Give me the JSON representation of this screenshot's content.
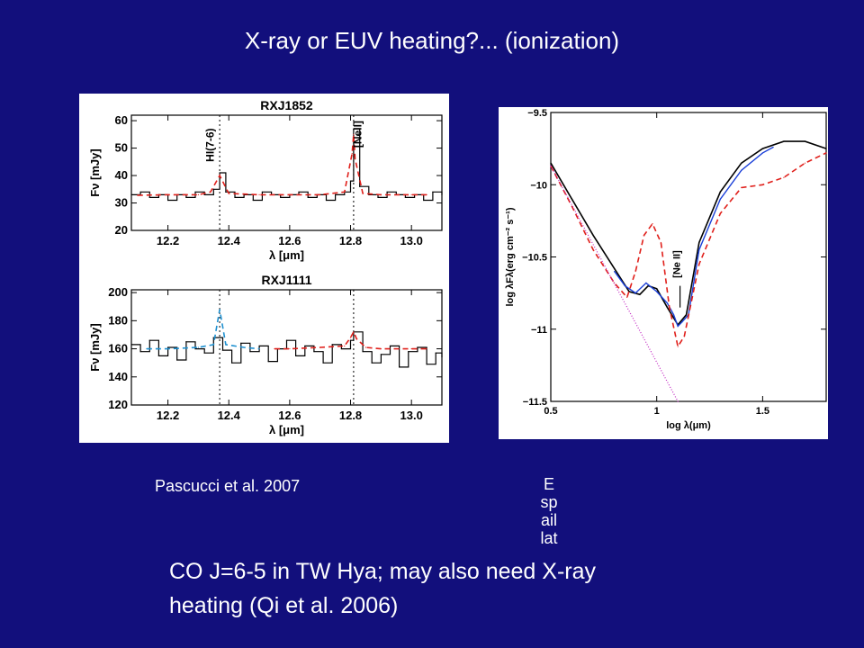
{
  "slide": {
    "title": "X-ray or EUV heating?... (ionization)",
    "caption_left": "Pascucci et al. 2007",
    "caption_right": "Espaillat",
    "bottom_line1": "CO J=6-5 in TW Hya; may also need X-ray",
    "bottom_line2": "heating (Qi et al. 2006)"
  },
  "colors": {
    "background": "#120f7c",
    "observed": "#000000",
    "model_red": "#e0201b",
    "model_blue": "#1e90d0",
    "spectrum_blue": "#1a3fd8",
    "dotted_magenta": "#c020c0"
  },
  "chart_data": [
    {
      "type": "line",
      "title": "RXJ1852",
      "ylabel": "Fν [mJy]",
      "xlabel": "λ [μm]",
      "xlim": [
        12.08,
        13.1
      ],
      "ylim": [
        20,
        62
      ],
      "xticks": [
        "12.2",
        "12.4",
        "12.6",
        "12.8",
        "13.0"
      ],
      "yticks": [
        "20",
        "30",
        "40",
        "50",
        "60"
      ],
      "annotations": [
        "HI(7-6)",
        "[NeII]"
      ],
      "line_markers_x": [
        12.37,
        12.81
      ],
      "series": [
        {
          "style": "step-black",
          "x": [
            12.08,
            12.11,
            12.14,
            12.17,
            12.2,
            12.23,
            12.26,
            12.29,
            12.32,
            12.35,
            12.37,
            12.39,
            12.42,
            12.45,
            12.48,
            12.51,
            12.54,
            12.57,
            12.6,
            12.63,
            12.66,
            12.69,
            12.72,
            12.75,
            12.78,
            12.8,
            12.81,
            12.83,
            12.86,
            12.89,
            12.92,
            12.95,
            12.98,
            13.01,
            13.04,
            13.07,
            13.1
          ],
          "y": [
            33,
            34,
            32,
            33,
            31,
            33,
            32,
            34,
            33,
            35,
            41,
            34,
            32,
            33,
            31,
            34,
            33,
            32,
            33,
            34,
            32,
            33,
            31,
            33,
            34,
            38,
            57,
            36,
            33,
            32,
            34,
            33,
            32,
            33,
            31,
            34,
            33
          ]
        },
        {
          "style": "dashed-red",
          "x": [
            12.1,
            12.2,
            12.3,
            12.34,
            12.37,
            12.4,
            12.5,
            12.6,
            12.7,
            12.78,
            12.805,
            12.81,
            12.815,
            12.84,
            12.9,
            13.0,
            13.05
          ],
          "y": [
            32.8,
            33,
            33,
            34,
            40,
            33.5,
            33,
            33,
            33,
            34,
            48,
            55,
            46,
            33.5,
            33,
            33,
            33
          ]
        }
      ]
    },
    {
      "type": "line",
      "title": "RXJ1111",
      "ylabel": "Fν [mJy]",
      "xlabel": "λ [μm]",
      "xlim": [
        12.08,
        13.1
      ],
      "ylim": [
        120,
        202
      ],
      "xticks": [
        "12.2",
        "12.4",
        "12.6",
        "12.8",
        "13.0"
      ],
      "yticks": [
        "120",
        "140",
        "160",
        "180",
        "200"
      ],
      "line_markers_x": [
        12.37,
        12.81
      ],
      "series": [
        {
          "style": "step-black",
          "x": [
            12.08,
            12.11,
            12.14,
            12.17,
            12.2,
            12.23,
            12.26,
            12.29,
            12.32,
            12.35,
            12.38,
            12.41,
            12.44,
            12.47,
            12.5,
            12.53,
            12.56,
            12.59,
            12.62,
            12.65,
            12.68,
            12.71,
            12.74,
            12.77,
            12.8,
            12.81,
            12.84,
            12.87,
            12.9,
            12.93,
            12.96,
            12.99,
            13.02,
            13.05,
            13.08,
            13.1
          ],
          "y": [
            163,
            158,
            166,
            155,
            161,
            152,
            165,
            160,
            157,
            168,
            159,
            150,
            164,
            158,
            162,
            151,
            160,
            166,
            155,
            162,
            158,
            150,
            163,
            160,
            166,
            172,
            158,
            150,
            156,
            162,
            147,
            158,
            161,
            149,
            157,
            154
          ]
        },
        {
          "style": "dashed-blue",
          "x": [
            12.13,
            12.2,
            12.3,
            12.35,
            12.37,
            12.39,
            12.45,
            12.5
          ],
          "y": [
            160,
            160,
            161,
            163,
            188,
            163,
            161,
            160
          ]
        },
        {
          "style": "dashed-red",
          "x": [
            12.55,
            12.6,
            12.7,
            12.78,
            12.8,
            12.81,
            12.82,
            12.85,
            12.9,
            13.0,
            13.05
          ],
          "y": [
            160,
            160,
            161,
            162,
            168,
            172,
            167,
            161,
            160,
            160,
            160
          ]
        }
      ]
    },
    {
      "type": "line",
      "ylabel": "log λFλ(erg cm⁻² s⁻¹)",
      "xlabel": "log λ(μm)",
      "xlim": [
        0.5,
        1.8
      ],
      "ylim": [
        -11.5,
        -9.5
      ],
      "xticks": [
        "0.5",
        "1",
        "1.5"
      ],
      "yticks": [
        "−9.5",
        "−10",
        "−10.5",
        "−11",
        "−11.5"
      ],
      "annotations": [
        "[Ne II]"
      ],
      "series": [
        {
          "style": "solid-black",
          "x": [
            0.5,
            0.6,
            0.7,
            0.8,
            0.87,
            0.92,
            0.96,
            1.0,
            1.05,
            1.1,
            1.14,
            1.2,
            1.3,
            1.4,
            1.5,
            1.6,
            1.7,
            1.8
          ],
          "y": [
            -9.85,
            -10.1,
            -10.35,
            -10.58,
            -10.74,
            -10.76,
            -10.7,
            -10.72,
            -10.85,
            -10.97,
            -10.9,
            -10.4,
            -10.05,
            -9.85,
            -9.75,
            -9.7,
            -9.7,
            -9.75
          ]
        },
        {
          "style": "solid-blue",
          "x": [
            0.8,
            0.85,
            0.9,
            0.95,
            1.0,
            1.05,
            1.08,
            1.1,
            1.12,
            1.15,
            1.2,
            1.3,
            1.4,
            1.5,
            1.55
          ],
          "y": [
            -10.6,
            -10.7,
            -10.75,
            -10.68,
            -10.74,
            -10.82,
            -10.9,
            -10.98,
            -10.95,
            -10.9,
            -10.45,
            -10.1,
            -9.9,
            -9.78,
            -9.74
          ]
        },
        {
          "style": "dashed-red",
          "x": [
            0.5,
            0.6,
            0.7,
            0.8,
            0.86,
            0.9,
            0.94,
            0.98,
            1.02,
            1.06,
            1.1,
            1.13,
            1.2,
            1.3,
            1.4,
            1.5,
            1.6,
            1.7,
            1.8
          ],
          "y": [
            -9.87,
            -10.15,
            -10.45,
            -10.68,
            -10.78,
            -10.6,
            -10.35,
            -10.27,
            -10.4,
            -10.85,
            -11.12,
            -11.05,
            -10.55,
            -10.2,
            -10.02,
            -10.0,
            -9.95,
            -9.85,
            -9.78
          ]
        },
        {
          "style": "dotted-magenta",
          "x": [
            0.5,
            1.1
          ],
          "y": [
            -9.87,
            -11.5
          ]
        }
      ]
    }
  ]
}
